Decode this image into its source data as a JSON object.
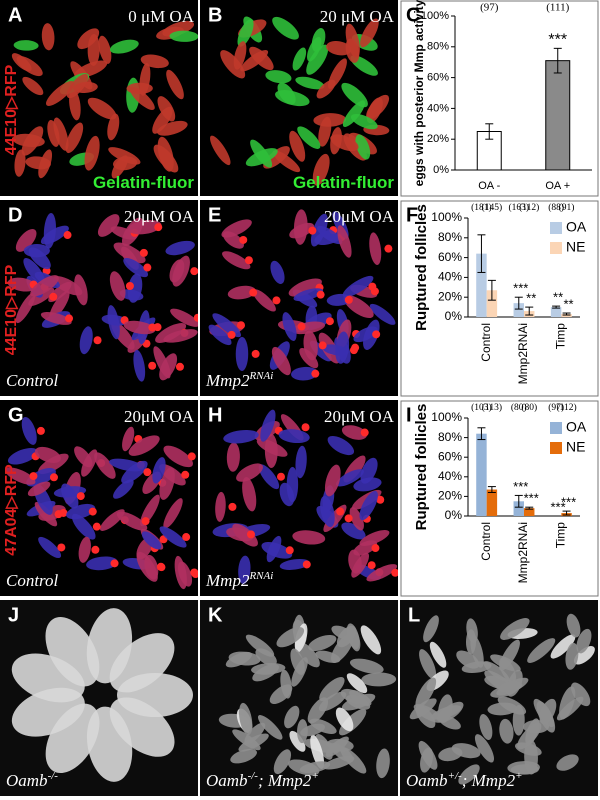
{
  "side_labels": [
    "44E10▷RFP",
    "44E10▷RFP",
    "47A04▷RFP"
  ],
  "panels": [
    {
      "letter": "A",
      "title": "0 μM OA",
      "caption": [
        {
          "text": "Gelatin-fluor"
        }
      ],
      "caption_color": "#33ee33"
    },
    {
      "letter": "B",
      "title": "20 μM OA",
      "caption": [
        {
          "text": "Gelatin-fluor"
        }
      ],
      "caption_color": "#33ee33"
    },
    {
      "letter": "D",
      "title": "20μM OA",
      "caption": [
        {
          "text": "Control"
        }
      ]
    },
    {
      "letter": "E",
      "title": "20μM OA",
      "caption": [
        {
          "text": "Mmp2"
        },
        {
          "text": "RNAi",
          "sup": true
        }
      ]
    },
    {
      "letter": "G",
      "title": "20μM OA",
      "caption": [
        {
          "text": "Control"
        }
      ]
    },
    {
      "letter": "H",
      "title": "20μM OA",
      "caption": [
        {
          "text": "Mmp2"
        },
        {
          "text": "RNAi",
          "sup": true
        }
      ]
    },
    {
      "letter": "J",
      "caption": [
        {
          "text": "Oamb"
        },
        {
          "text": "-/-",
          "sup": true
        }
      ]
    },
    {
      "letter": "K",
      "caption": [
        {
          "text": "Oamb"
        },
        {
          "text": "-/-",
          "sup": true
        },
        {
          "text": "; Mmp2"
        },
        {
          "text": "+",
          "sup": true
        }
      ]
    },
    {
      "letter": "L",
      "caption": [
        {
          "text": "Oamb"
        },
        {
          "text": "+/-",
          "sup": true
        },
        {
          "text": "; Mmp2"
        },
        {
          "text": "+",
          "sup": true
        }
      ]
    }
  ],
  "chart_data": [
    {
      "type": "bar",
      "panel_label": "C",
      "ylabel": "eggs with posterior Mmp activity",
      "categories": [
        "OA -",
        "OA +"
      ],
      "values": [
        25,
        71
      ],
      "errors": [
        5,
        8
      ],
      "colors": [
        "#ffffff",
        "#8a8a8a"
      ],
      "n_labels": [
        "(97)",
        "(111)"
      ],
      "sig_labels": [
        null,
        "***"
      ],
      "ylim": [
        0,
        100
      ],
      "yticks": [
        {
          "value": 0,
          "label": "0%"
        },
        {
          "value": 20,
          "label": "20%"
        },
        {
          "value": 40,
          "label": "40%"
        },
        {
          "value": 60,
          "label": "60%"
        },
        {
          "value": 80,
          "label": "80%"
        },
        {
          "value": 100,
          "label": "100%"
        }
      ]
    },
    {
      "type": "bar",
      "panel_label": "F",
      "ylabel": "Ruptured follicles",
      "categories": [
        "Control",
        "Mmp2RNAi",
        "Timp"
      ],
      "ylim": [
        0,
        100
      ],
      "yticks": [
        {
          "value": 0,
          "label": "0%"
        },
        {
          "value": 20,
          "label": "20%"
        },
        {
          "value": 40,
          "label": "40%"
        },
        {
          "value": 60,
          "label": "60%"
        },
        {
          "value": 80,
          "label": "80%"
        },
        {
          "value": 100,
          "label": "100%"
        }
      ],
      "series": [
        {
          "name": "OA",
          "color": "#b8cce4",
          "values": [
            64,
            14,
            10
          ],
          "errors": [
            19,
            6,
            1
          ],
          "n_labels": [
            "(181)",
            "(163)",
            "(88)"
          ],
          "sig_labels": [
            null,
            "***",
            "**"
          ]
        },
        {
          "name": "NE",
          "color": "#fbd5b5",
          "values": [
            27,
            6,
            3
          ],
          "errors": [
            10,
            4,
            1
          ],
          "n_labels": [
            "(145)",
            "(112)",
            "(91)"
          ],
          "sig_labels": [
            null,
            "**",
            "**"
          ]
        }
      ]
    },
    {
      "type": "bar",
      "panel_label": "I",
      "ylabel": "Ruptured follicles",
      "categories": [
        "Control",
        "Mmp2RNAi",
        "Timp"
      ],
      "ylim": [
        0,
        100
      ],
      "yticks": [
        {
          "value": 0,
          "label": "0%"
        },
        {
          "value": 20,
          "label": "20%"
        },
        {
          "value": 40,
          "label": "40%"
        },
        {
          "value": 60,
          "label": "60%"
        },
        {
          "value": 80,
          "label": "80%"
        },
        {
          "value": 100,
          "label": "100%"
        }
      ],
      "series": [
        {
          "name": "OA",
          "color": "#95b3d7",
          "values": [
            84,
            15,
            0
          ],
          "errors": [
            6,
            6,
            0
          ],
          "n_labels": [
            "(103)",
            "(80)",
            "(97)"
          ],
          "sig_labels": [
            null,
            "***",
            "***"
          ]
        },
        {
          "name": "NE",
          "color": "#e46c0a",
          "values": [
            27,
            8,
            3
          ],
          "errors": [
            3,
            1,
            2
          ],
          "n_labels": [
            "(113)",
            "(80)",
            "(112)"
          ],
          "sig_labels": [
            null,
            "***",
            "***"
          ]
        }
      ]
    }
  ]
}
